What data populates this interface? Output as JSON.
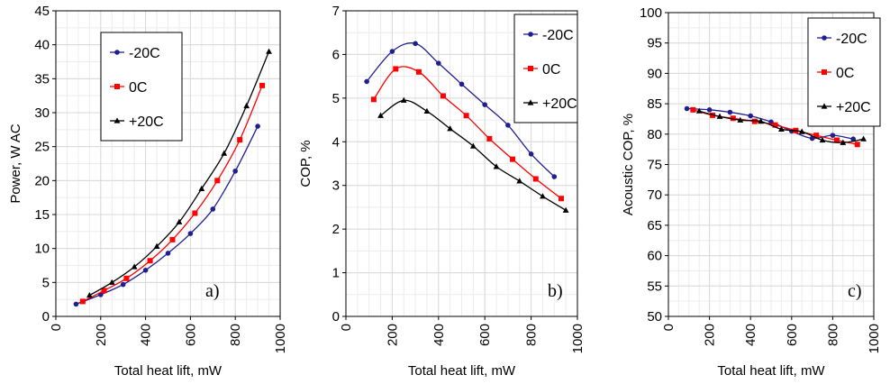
{
  "colors": {
    "-20C": "#1f1f8f",
    "0C": "#ff0000",
    "+20C": "#000000",
    "grid": "#d9d9d9",
    "minor_grid": "#ececec"
  },
  "chart_data": [
    {
      "type": "line",
      "panel_label": "a)",
      "xlabel": "Total heat lift, mW",
      "ylabel": "Power, W AC",
      "xlim": [
        0,
        1000
      ],
      "ylim": [
        0,
        45
      ],
      "xticks": [
        0,
        200,
        400,
        600,
        800,
        1000
      ],
      "yticks": [
        0,
        5,
        10,
        15,
        20,
        25,
        30,
        35,
        40,
        45
      ],
      "legend_position": "top-left",
      "series": [
        {
          "name": "-20C",
          "marker": "circle",
          "x": [
            90,
            200,
            300,
            400,
            500,
            600,
            700,
            800,
            900
          ],
          "y": [
            1.8,
            3.2,
            4.7,
            6.8,
            9.3,
            12.2,
            15.8,
            21.4,
            28.0
          ]
        },
        {
          "name": "0C",
          "marker": "square",
          "x": [
            120,
            215,
            315,
            420,
            520,
            620,
            720,
            820,
            920
          ],
          "y": [
            2.2,
            3.8,
            5.6,
            8.2,
            11.3,
            15.2,
            20.0,
            26.0,
            34.0
          ]
        },
        {
          "name": "+20C",
          "marker": "triangle",
          "x": [
            150,
            250,
            350,
            450,
            550,
            650,
            750,
            850,
            950
          ],
          "y": [
            3.1,
            5.0,
            7.3,
            10.3,
            13.9,
            18.8,
            24.0,
            31.0,
            39.0
          ]
        }
      ]
    },
    {
      "type": "line",
      "panel_label": "b)",
      "xlabel": "Total heat lift, mW",
      "ylabel": "COP, %",
      "xlim": [
        0,
        1000
      ],
      "ylim": [
        0,
        7
      ],
      "xticks": [
        0,
        200,
        400,
        600,
        800,
        1000
      ],
      "yticks": [
        0,
        1,
        2,
        3,
        4,
        5,
        6,
        7
      ],
      "legend_position": "top-right",
      "series": [
        {
          "name": "-20C",
          "marker": "circle",
          "x": [
            90,
            200,
            300,
            400,
            500,
            600,
            700,
            800,
            900
          ],
          "y": [
            5.38,
            6.07,
            6.25,
            5.8,
            5.32,
            4.85,
            4.38,
            3.72,
            3.2
          ]
        },
        {
          "name": "0C",
          "marker": "square",
          "x": [
            120,
            215,
            315,
            420,
            520,
            620,
            720,
            820,
            930
          ],
          "y": [
            4.97,
            5.67,
            5.6,
            5.05,
            4.6,
            4.07,
            3.6,
            3.15,
            2.7
          ]
        },
        {
          "name": "+20C",
          "marker": "triangle",
          "x": [
            150,
            250,
            350,
            450,
            550,
            650,
            750,
            850,
            950
          ],
          "y": [
            4.6,
            4.95,
            4.7,
            4.3,
            3.9,
            3.43,
            3.1,
            2.75,
            2.43
          ]
        }
      ]
    },
    {
      "type": "line",
      "panel_label": "c)",
      "xlabel": "Total heat lift, mW",
      "ylabel": "Acoustic COP, %",
      "xlim": [
        0,
        1000
      ],
      "ylim": [
        50,
        100
      ],
      "xticks": [
        0,
        200,
        400,
        600,
        800,
        1000
      ],
      "yticks": [
        50,
        55,
        60,
        65,
        70,
        75,
        80,
        85,
        90,
        95,
        100
      ],
      "legend_position": "top-right",
      "series": [
        {
          "name": "-20C",
          "marker": "circle",
          "x": [
            90,
            200,
            300,
            400,
            500,
            600,
            700,
            800,
            900
          ],
          "y": [
            84.2,
            84.0,
            83.6,
            83.0,
            82.0,
            80.5,
            79.3,
            79.8,
            79.2
          ]
        },
        {
          "name": "0C",
          "marker": "square",
          "x": [
            120,
            215,
            315,
            420,
            520,
            620,
            720,
            820,
            920
          ],
          "y": [
            84.0,
            83.1,
            82.6,
            82.1,
            81.5,
            80.6,
            79.8,
            79.0,
            78.3
          ]
        },
        {
          "name": "+20C",
          "marker": "triangle",
          "x": [
            150,
            250,
            350,
            450,
            550,
            650,
            750,
            850,
            950
          ],
          "y": [
            83.8,
            82.9,
            82.3,
            82.1,
            80.8,
            80.4,
            79.0,
            78.6,
            79.2
          ]
        }
      ]
    }
  ]
}
